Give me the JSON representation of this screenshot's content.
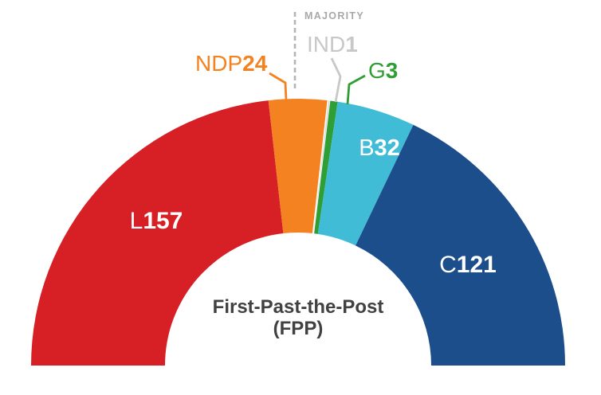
{
  "majority_label": "MAJORITY",
  "center_title": {
    "line1": "First-Past-the-Post",
    "line2": "(FPP)"
  },
  "chart_data": {
    "type": "pie",
    "variant": "semicircle-donut-parliament",
    "title": "First-Past-the-Post (FPP)",
    "annotations": [
      "MAJORITY"
    ],
    "legend_position": "around-arc",
    "series": [
      {
        "party": "L",
        "seats": 157,
        "color": "#d71f26",
        "label_color": "#ffffff"
      },
      {
        "party": "NDP",
        "seats": 24,
        "color": "#f58220",
        "label_color": "#f58220"
      },
      {
        "party": "IND",
        "seats": 1,
        "color": "#d9d9d9",
        "label_color": "#c8c8c8"
      },
      {
        "party": "G",
        "seats": 3,
        "color": "#2f9e35",
        "label_color": "#2f9e35"
      },
      {
        "party": "B",
        "seats": 32,
        "color": "#41bcd6",
        "label_color": "#ffffff"
      },
      {
        "party": "C",
        "seats": 121,
        "color": "#1d4e8c",
        "label_color": "#ffffff"
      }
    ]
  }
}
